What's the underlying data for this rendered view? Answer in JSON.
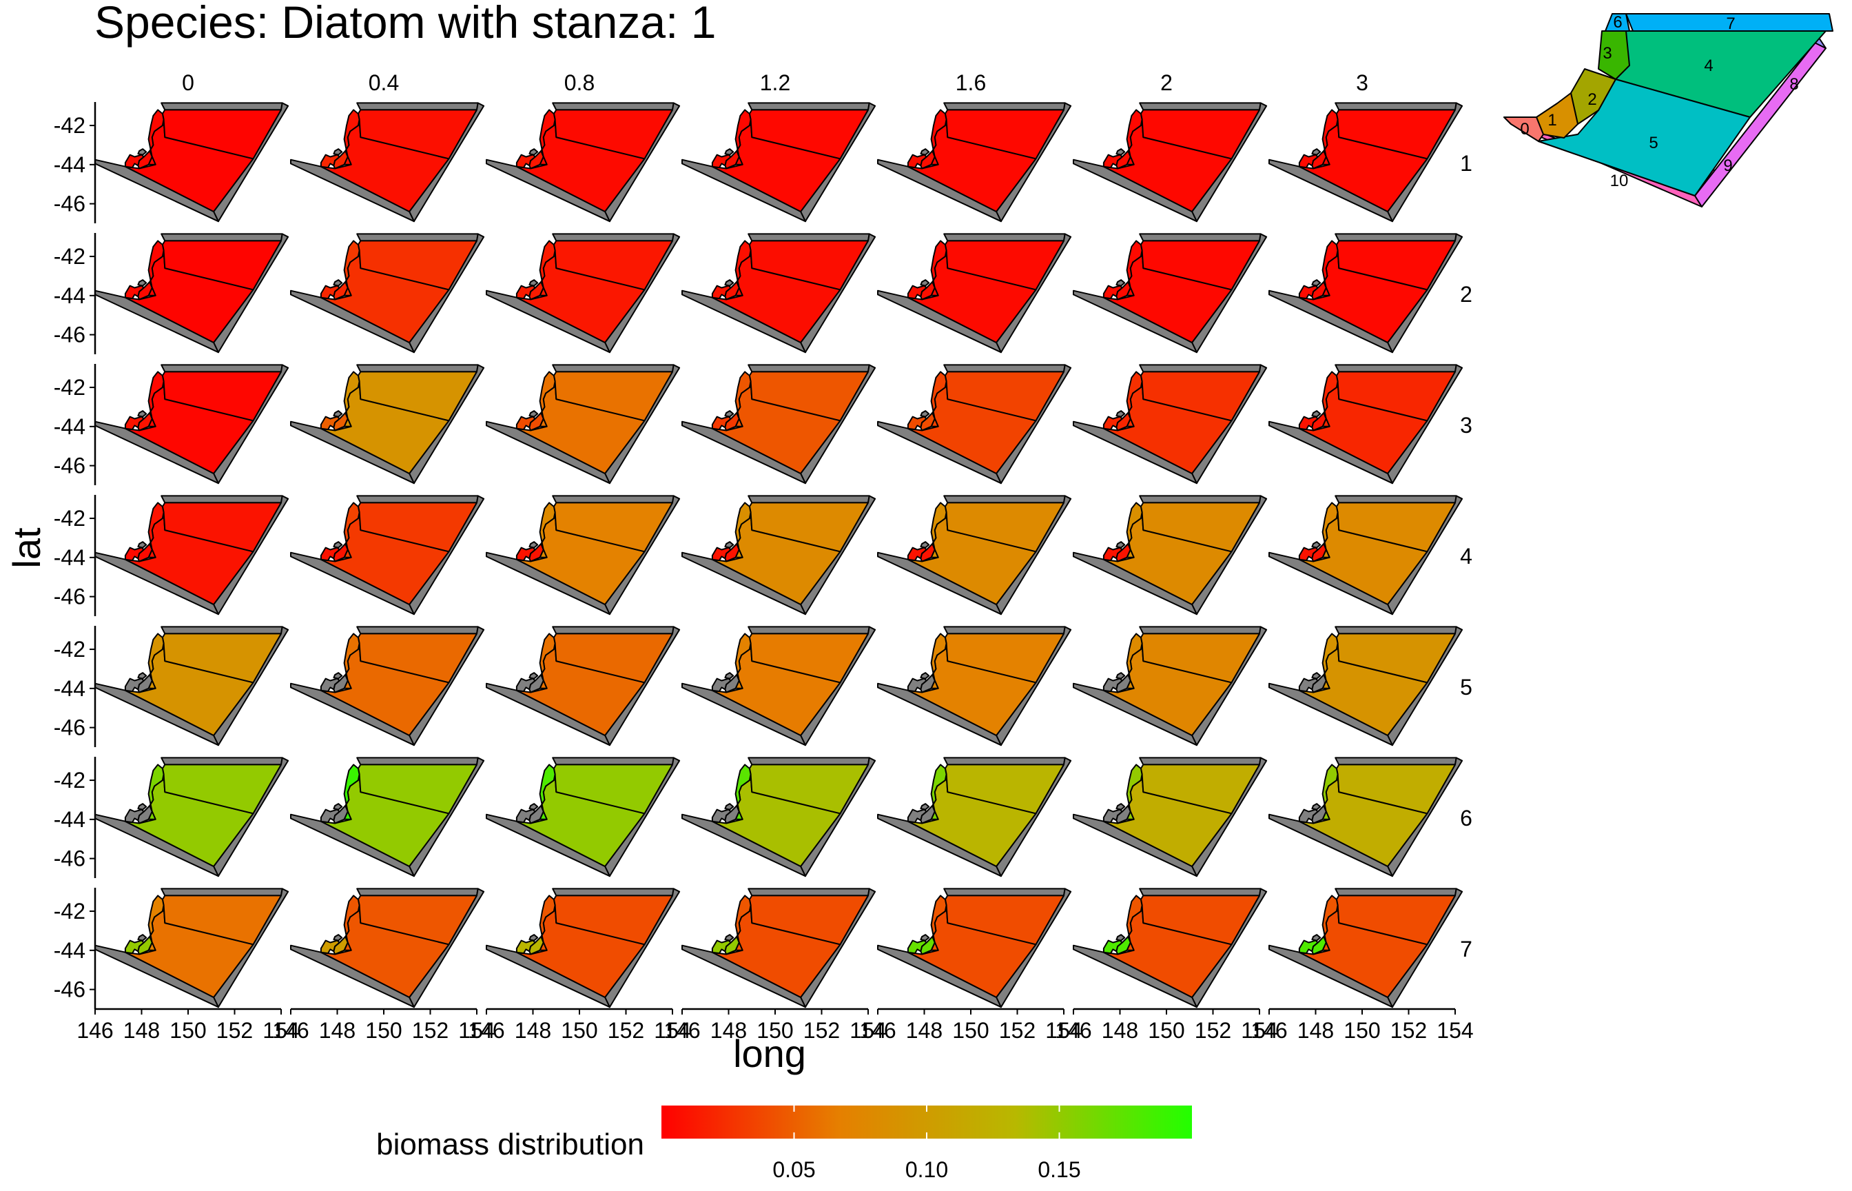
{
  "chart_data": {
    "type": "heatmap",
    "title": "Species: Diatom with stanza: 1",
    "xlabel": "long",
    "ylabel": "lat",
    "col_labels": [
      "0",
      "0.4",
      "0.8",
      "1.2",
      "1.6",
      "2",
      "3"
    ],
    "row_labels": [
      "1",
      "2",
      "3",
      "4",
      "5",
      "6",
      "7"
    ],
    "x_ticks": [
      "146",
      "148",
      "150",
      "152",
      "154"
    ],
    "y_ticks": [
      "-42",
      "-44",
      "-46"
    ],
    "legend": {
      "title": "biomass distribution",
      "breaks": [
        "0.05",
        "0.10",
        "0.15"
      ],
      "break_values": [
        0.05,
        0.1,
        0.15
      ],
      "min": 0.0,
      "max": 0.2,
      "colors": [
        "#ff0000",
        "#e67f00",
        "#b8b800",
        "#22ff00"
      ]
    },
    "na_color": "#808080",
    "cells": [
      [
        [
          0.005,
          0.004,
          0.002,
          0.002
        ],
        [
          0.02,
          0.01,
          0.008,
          0.008
        ],
        [
          0.012,
          0.006,
          0.005,
          0.005
        ],
        [
          0.008,
          0.004,
          0.004,
          0.004
        ],
        [
          0.007,
          0.004,
          0.004,
          0.004
        ],
        [
          0.006,
          0.004,
          0.004,
          0.004
        ],
        [
          0.005,
          0.004,
          0.004,
          0.004
        ]
      ],
      [
        [
          0.005,
          0.003,
          0.002,
          0.002
        ],
        [
          0.02,
          0.03,
          0.025,
          0.025
        ],
        [
          0.014,
          0.014,
          0.012,
          0.012
        ],
        [
          0.01,
          0.008,
          0.007,
          0.007
        ],
        [
          0.008,
          0.006,
          0.005,
          0.005
        ],
        [
          0.006,
          0.005,
          0.004,
          0.004
        ],
        [
          0.006,
          0.004,
          0.004,
          0.004
        ]
      ],
      [
        [
          0.01,
          0.004,
          0.003,
          0.003
        ],
        [
          0.05,
          0.09,
          0.09,
          0.09
        ],
        [
          0.04,
          0.06,
          0.06,
          0.06
        ],
        [
          0.03,
          0.045,
          0.045,
          0.045
        ],
        [
          0.04,
          0.035,
          0.035,
          0.035
        ],
        [
          0.02,
          0.025,
          0.025,
          0.025
        ],
        [
          0.01,
          0.02,
          0.02,
          0.02
        ]
      ],
      [
        [
          0.005,
          0.01,
          0.01,
          0.01
        ],
        [
          0.01,
          0.035,
          0.03,
          0.03
        ],
        [
          0.01,
          0.08,
          0.07,
          0.07
        ],
        [
          0.01,
          0.085,
          0.08,
          0.08
        ],
        [
          0.01,
          0.085,
          0.08,
          0.08
        ],
        [
          0.01,
          0.085,
          0.08,
          0.08
        ],
        [
          0.01,
          0.08,
          0.08,
          0.08
        ]
      ],
      [
        [
          null,
          0.09,
          0.09,
          0.09
        ],
        [
          null,
          0.06,
          0.055,
          0.055
        ],
        [
          null,
          0.06,
          0.055,
          0.055
        ],
        [
          null,
          0.07,
          0.065,
          0.065
        ],
        [
          null,
          0.075,
          0.07,
          0.07
        ],
        [
          null,
          0.08,
          0.075,
          0.075
        ],
        [
          null,
          0.09,
          0.09,
          0.09
        ]
      ],
      [
        [
          null,
          0.16,
          0.15,
          0.15
        ],
        [
          null,
          0.19,
          0.15,
          0.15
        ],
        [
          null,
          0.18,
          0.15,
          0.15
        ],
        [
          null,
          0.175,
          0.14,
          0.14
        ],
        [
          null,
          0.16,
          0.13,
          0.13
        ],
        [
          null,
          0.15,
          0.12,
          0.12
        ],
        [
          null,
          0.15,
          0.12,
          0.12
        ]
      ],
      [
        [
          0.15,
          0.07,
          0.06,
          0.06
        ],
        [
          0.1,
          0.045,
          0.045,
          0.045
        ],
        [
          0.13,
          0.045,
          0.04,
          0.04
        ],
        [
          0.15,
          0.045,
          0.04,
          0.04
        ],
        [
          0.17,
          0.045,
          0.04,
          0.04
        ],
        [
          0.18,
          0.045,
          0.04,
          0.04
        ],
        [
          0.18,
          0.045,
          0.04,
          0.04
        ]
      ]
    ],
    "inset_map": {
      "boxes": [
        "0",
        "1",
        "2",
        "3",
        "4",
        "5",
        "6",
        "7",
        "8",
        "9",
        "10"
      ],
      "colors": {
        "0": "#f8766d",
        "1": "#d89000",
        "2": "#a3a500",
        "3": "#39b600",
        "4": "#00bf7d",
        "5": "#00bfc4",
        "6": "#00b0f6",
        "7": "#00b0f6",
        "8": "#9590ff",
        "9": "#e76bf3",
        "10": "#ff62bc"
      }
    }
  }
}
